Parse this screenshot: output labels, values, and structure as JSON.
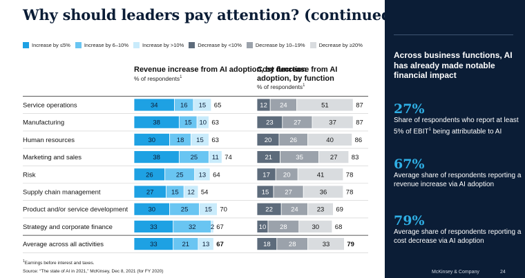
{
  "title": "Why should leaders pay attention? (continued)",
  "colors": {
    "inc_le5": "#1ea1e3",
    "inc_6_10": "#69c5f2",
    "inc_gt10": "#c9ebfb",
    "dec_lt10": "#5d6b7b",
    "dec_10_19": "#9ba2ab",
    "dec_ge20": "#d9dcdf",
    "navy": "#0b1d36",
    "accent": "#2fb0e6"
  },
  "legend": [
    {
      "label": "Increase by ≤5%",
      "color": "#1ea1e3"
    },
    {
      "label": "Increase by 6–10%",
      "color": "#69c5f2"
    },
    {
      "label": "Increase by >10%",
      "color": "#c9ebfb"
    },
    {
      "label": "Decrease by <10%",
      "color": "#5d6b7b"
    },
    {
      "label": "Decrease by 10–19%",
      "color": "#9ba2ab"
    },
    {
      "label": "Decrease by ≥20%",
      "color": "#d9dcdf"
    }
  ],
  "headers": {
    "revenue": {
      "title": "Revenue increase from AI adoption, by function",
      "subtitle": "% of respondents",
      "note_mark": "1"
    },
    "cost": {
      "title": "Cost decrease from AI adoption, by function",
      "subtitle": "% of respondents",
      "note_mark": "1"
    }
  },
  "chart_data": {
    "type": "bar",
    "orientation": "horizontal",
    "stacked": true,
    "categories": [
      "Service operations",
      "Manufacturing",
      "Human resources",
      "Marketing and sales",
      "Risk",
      "Supply chain management",
      "Product and/or service development",
      "Strategy and corporate finance",
      "Average across all activities"
    ],
    "panels": [
      {
        "name": "Revenue increase from AI adoption, by function",
        "series": [
          {
            "name": "Increase by ≤5%",
            "values": [
              34,
              38,
              30,
              38,
              26,
              27,
              30,
              33,
              33
            ]
          },
          {
            "name": "Increase by 6–10%",
            "values": [
              16,
              15,
              18,
              25,
              25,
              15,
              25,
              32,
              21
            ]
          },
          {
            "name": "Increase by >10%",
            "values": [
              15,
              10,
              15,
              11,
              13,
              12,
              15,
              2,
              13
            ]
          }
        ],
        "totals": [
          65,
          63,
          63,
          74,
          64,
          54,
          70,
          67,
          67
        ]
      },
      {
        "name": "Cost decrease from AI adoption, by function",
        "series": [
          {
            "name": "Decrease by <10%",
            "values": [
              12,
              23,
              20,
              21,
              17,
              15,
              22,
              10,
              18
            ]
          },
          {
            "name": "Decrease by 10–19%",
            "values": [
              24,
              27,
              26,
              35,
              20,
              27,
              24,
              28,
              28
            ]
          },
          {
            "name": "Decrease by ≥20%",
            "values": [
              51,
              37,
              40,
              27,
              41,
              36,
              23,
              30,
              33
            ]
          }
        ],
        "totals": [
          87,
          87,
          86,
          83,
          78,
          78,
          69,
          68,
          79
        ]
      }
    ],
    "unit": "% of respondents",
    "xlim": [
      0,
      100
    ]
  },
  "footnote": "Earnings before interest and taxes.",
  "footnote_mark": "1",
  "source": "Source: “The state of AI in 2021,” McKinsey, Dec 8, 2021 (for FY 2020)",
  "sidebar": {
    "headline": "Across business functions, AI has already made notable financial impact",
    "stats": [
      {
        "value": "27%",
        "text": "Share of respondents who report at least 5% of EBIT",
        "sup": "1",
        "text_after": " being attributable to AI"
      },
      {
        "value": "67%",
        "text": "Average share of respondents reporting a revenue increase via AI adoption",
        "sup": "",
        "text_after": ""
      },
      {
        "value": "79%",
        "text": "Average share of respondents reporting a cost decrease via AI adoption",
        "sup": "",
        "text_after": ""
      }
    ],
    "footer_source": "McKinsey & Company",
    "page_number": "24"
  }
}
